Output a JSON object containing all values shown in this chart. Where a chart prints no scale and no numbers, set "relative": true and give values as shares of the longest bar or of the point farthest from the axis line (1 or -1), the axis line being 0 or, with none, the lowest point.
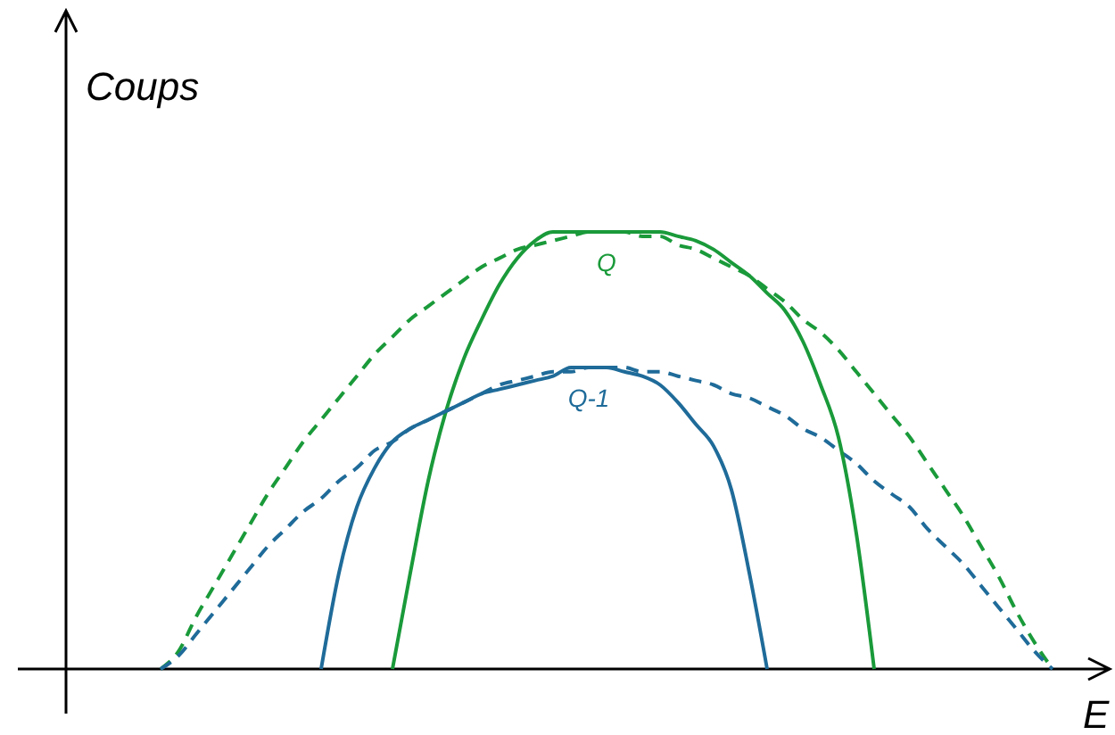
{
  "chart_data": {
    "type": "line",
    "relative": true,
    "xlabel": "E",
    "ylabel": "Coups",
    "categories": [
      null,
      null,
      null,
      null,
      null,
      null,
      null,
      null,
      null,
      null,
      null,
      null,
      null,
      null,
      null,
      null,
      null,
      null,
      null,
      null,
      null,
      null,
      null,
      null,
      null,
      null,
      null,
      null,
      null,
      null,
      null,
      null,
      null,
      null,
      null,
      null,
      null,
      null,
      null,
      null,
      null,
      null,
      null,
      null,
      null,
      null,
      null,
      null,
      null,
      null,
      null
    ],
    "series": [
      {
        "color": "#1a9a3a",
        "line_style": "dashed",
        "values": [
          0,
          0.04,
          0.12,
          0.19,
          0.26,
          0.33,
          0.4,
          0.46,
          0.52,
          0.57,
          0.62,
          0.67,
          0.72,
          0.76,
          0.8,
          0.83,
          0.86,
          0.89,
          0.92,
          0.94,
          0.96,
          0.97,
          0.98,
          0.99,
          1,
          1,
          1,
          0.99,
          0.99,
          0.97,
          0.96,
          0.94,
          0.92,
          0.9,
          0.87,
          0.84,
          0.8,
          0.77,
          0.73,
          0.68,
          0.63,
          0.58,
          0.53,
          0.47,
          0.41,
          0.35,
          0.28,
          0.21,
          0.13,
          0.06,
          0
        ]
      },
      {
        "color": "#1f6b99",
        "line_style": "dashed",
        "values": [
          0,
          0.03,
          0.08,
          0.13,
          0.18,
          0.23,
          0.28,
          0.32,
          0.36,
          0.39,
          0.43,
          0.46,
          0.5,
          0.52,
          0.55,
          0.57,
          0.59,
          0.61,
          0.63,
          0.65,
          0.66,
          0.67,
          0.68,
          0.68,
          0.69,
          0.69,
          0.69,
          0.68,
          0.68,
          0.67,
          0.66,
          0.65,
          0.63,
          0.62,
          0.6,
          0.58,
          0.55,
          0.53,
          0.5,
          0.47,
          0.43,
          0.4,
          0.37,
          0.32,
          0.28,
          0.24,
          0.19,
          0.14,
          0.09,
          0.04,
          0
        ]
      },
      {
        "name": "Q",
        "color": "#1a9a3a",
        "line_style": "solid",
        "values": [
          null,
          null,
          null,
          null,
          null,
          null,
          null,
          null,
          null,
          null,
          null,
          null,
          null,
          0,
          0.22,
          0.43,
          0.59,
          0.71,
          0.8,
          0.88,
          0.94,
          0.98,
          1,
          1,
          1,
          1,
          1,
          1,
          1,
          0.99,
          0.98,
          0.96,
          0.93,
          0.9,
          0.86,
          0.82,
          0.75,
          0.65,
          0.53,
          0.31,
          0,
          null,
          null,
          null,
          null,
          null,
          null,
          null,
          null,
          null,
          null
        ]
      },
      {
        "name": "Q-1",
        "color": "#1f6b99",
        "line_style": "solid",
        "values": [
          null,
          null,
          null,
          null,
          null,
          null,
          null,
          null,
          null,
          0,
          0.22,
          0.37,
          0.46,
          0.52,
          0.55,
          0.57,
          0.59,
          0.61,
          0.63,
          0.64,
          0.65,
          0.66,
          0.67,
          0.69,
          0.69,
          0.69,
          0.68,
          0.67,
          0.65,
          0.61,
          0.56,
          0.51,
          0.41,
          0.22,
          0,
          null,
          null,
          null,
          null,
          null,
          null,
          null,
          null,
          null,
          null,
          null,
          null,
          null,
          null,
          null,
          null
        ]
      }
    ]
  }
}
